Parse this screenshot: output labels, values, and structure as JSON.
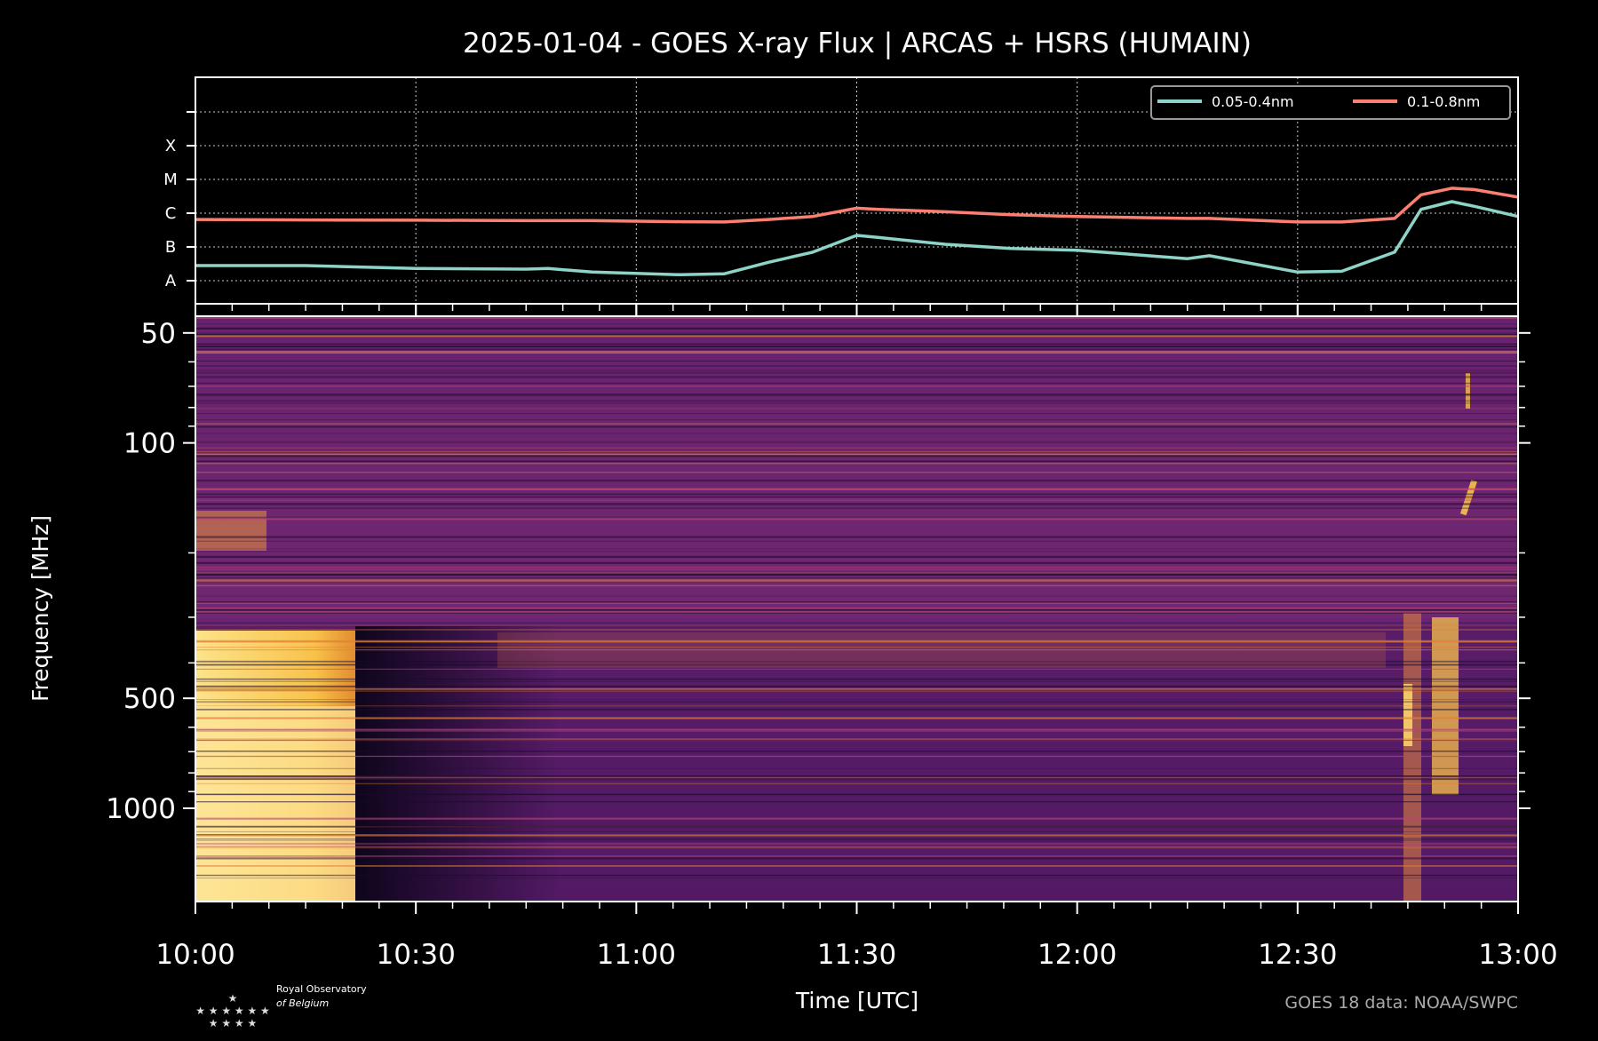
{
  "title": "2025-01-04 - GOES X-ray Flux | ARCAS + HSRS (HUMAIN)",
  "chart_data": [
    {
      "type": "line",
      "title": "2025-01-04 - GOES X-ray Flux | ARCAS + HSRS (HUMAIN)",
      "xlabel": "",
      "ylabel": "",
      "x_range_hours": [
        10,
        13
      ],
      "y_scale": "log",
      "y_ticks": [
        "A",
        "B",
        "C",
        "M",
        "X"
      ],
      "grid": true,
      "legend_position": "top-right",
      "x": [
        10.0,
        10.25,
        10.5,
        10.75,
        10.8,
        10.9,
        11.1,
        11.2,
        11.3,
        11.4,
        11.5,
        11.55,
        11.7,
        11.85,
        12.0,
        12.25,
        12.3,
        12.5,
        12.6,
        12.72,
        12.78,
        12.85,
        12.9,
        13.0
      ],
      "series": [
        {
          "name": "0.05-0.4nm",
          "color": "#8dd3c7",
          "values": [
            2.8e-08,
            2.8e-08,
            2.3e-08,
            2.2e-08,
            2.3e-08,
            1.8e-08,
            1.5e-08,
            1.6e-08,
            3.5e-08,
            7e-08,
            2.2e-07,
            1.9e-07,
            1.2e-07,
            9e-08,
            8e-08,
            4.5e-08,
            5.5e-08,
            1.8e-08,
            1.9e-08,
            7e-08,
            1.3e-06,
            2.2e-06,
            1.6e-06,
            8e-07
          ]
        },
        {
          "name": "0.1-0.8nm",
          "color": "#fb8072",
          "values": [
            6.5e-07,
            6.3e-07,
            6.2e-07,
            6e-07,
            6e-07,
            6e-07,
            5.6e-07,
            5.5e-07,
            6.5e-07,
            8e-07,
            1.4e-06,
            1.3e-06,
            1.1e-06,
            9e-07,
            8e-07,
            7e-07,
            7e-07,
            5.5e-07,
            5.5e-07,
            7e-07,
            3.5e-06,
            5.5e-06,
            5e-06,
            3e-06
          ]
        }
      ]
    },
    {
      "type": "heatmap",
      "xlabel": "Time [UTC]",
      "ylabel": "Frequency [MHz]",
      "y_scale": "log",
      "y_range": [
        45,
        1800
      ],
      "y_ticks": [
        50,
        100,
        500,
        1000
      ],
      "x_range_hours": [
        10,
        13
      ],
      "x_ticks": [
        "10:00",
        "10:30",
        "11:00",
        "11:30",
        "12:00",
        "12:30",
        "13:00"
      ],
      "colormap": "inferno"
    }
  ],
  "credits": {
    "logo_line1": "Royal Observatory",
    "logo_line2": "of Belgium",
    "source": "GOES 18 data: NOAA/SWPC"
  }
}
